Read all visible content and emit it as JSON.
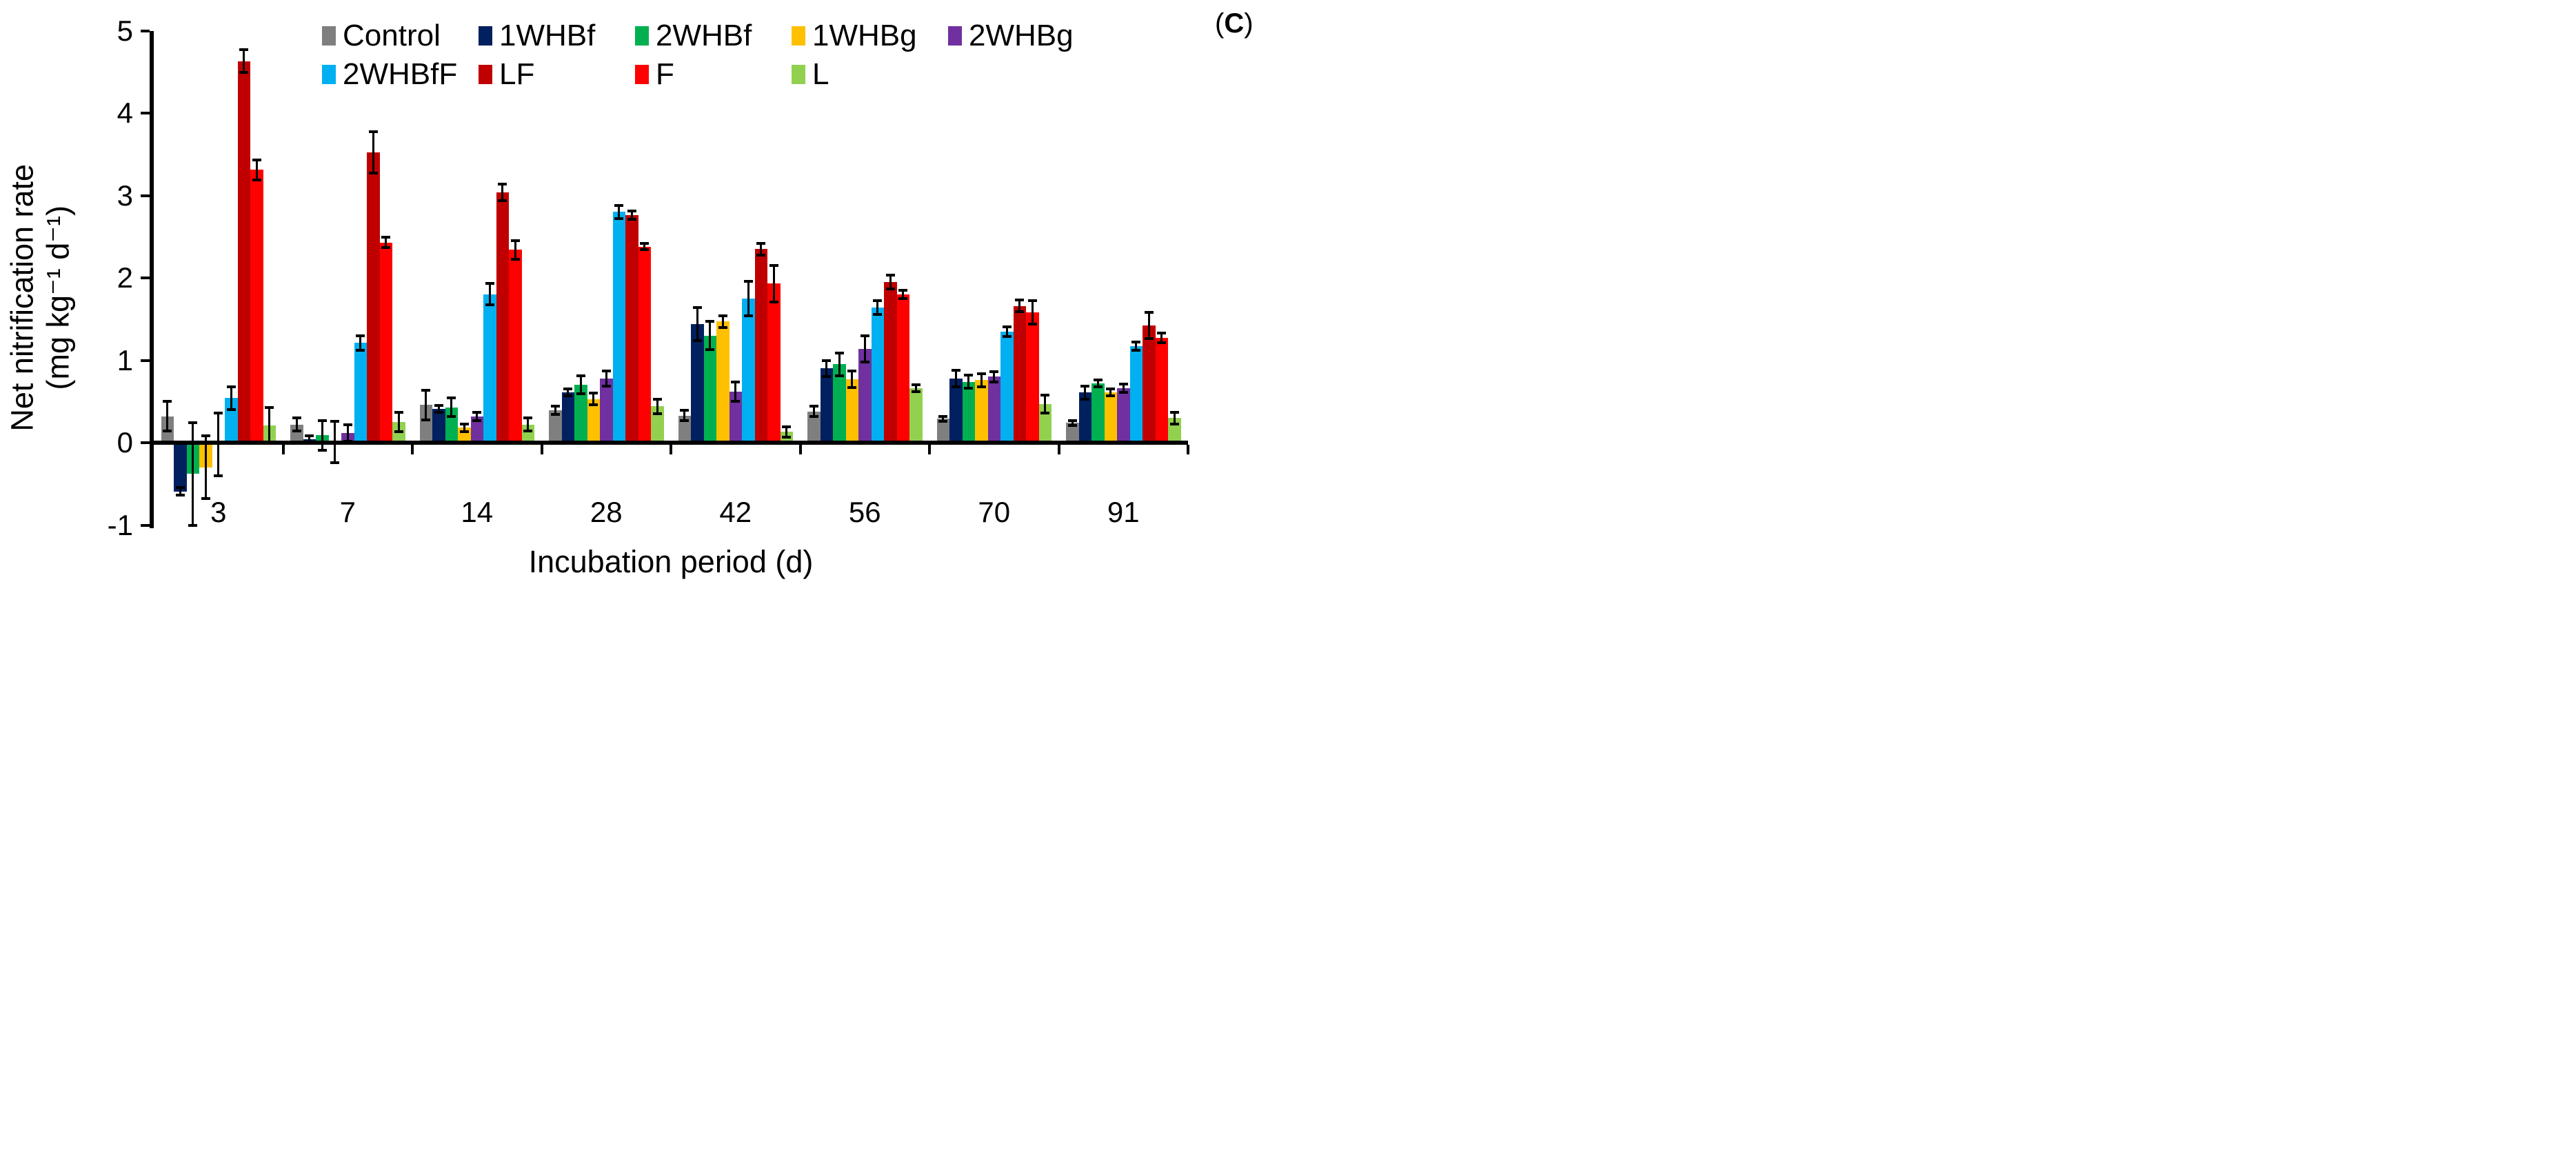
{
  "panel_label": {
    "open": "(",
    "letter": "C",
    "close": ")"
  },
  "y_axis": {
    "title_line1": "Net nitrification rate",
    "title_line2": "(mg kg⁻¹ d⁻¹)",
    "ticks": [
      "5",
      "4",
      "3",
      "2",
      "1",
      "0",
      "-1"
    ],
    "min": -1,
    "max": 5
  },
  "x_axis": {
    "title": "Incubation period (d)"
  },
  "legend": {
    "rows": [
      [
        "Control",
        "1WHBf",
        "2WHBf",
        "1WHBg",
        "2WHBg"
      ],
      [
        "2WHBfF",
        "LF",
        "F",
        "L"
      ]
    ]
  },
  "chart_data": {
    "type": "bar",
    "title": "",
    "xlabel": "Incubation period (d)",
    "ylabel": "Net nitrification rate (mg kg⁻¹ d⁻¹)",
    "ylim": [
      -1,
      5
    ],
    "grid": false,
    "legend_position": "top",
    "error_bars": true,
    "categories": [
      "3",
      "7",
      "14",
      "28",
      "42",
      "56",
      "70",
      "91"
    ],
    "series": [
      {
        "name": "Control",
        "color": "#7F7F7F",
        "values": [
          0.32,
          0.22,
          0.46,
          0.39,
          0.33,
          0.38,
          0.29,
          0.24
        ],
        "errors": [
          0.18,
          0.08,
          0.18,
          0.05,
          0.06,
          0.06,
          0.03,
          0.03
        ]
      },
      {
        "name": "1WHBf",
        "color": "#002060",
        "values": [
          -0.59,
          0.04,
          0.41,
          0.61,
          1.44,
          0.9,
          0.78,
          0.61
        ],
        "errors": [
          0.05,
          0.04,
          0.04,
          0.04,
          0.2,
          0.1,
          0.1,
          0.08
        ]
      },
      {
        "name": "2WHBf",
        "color": "#00B050",
        "values": [
          -0.38,
          0.09,
          0.43,
          0.7,
          1.3,
          0.95,
          0.74,
          0.72
        ],
        "errors": [
          0.62,
          0.18,
          0.11,
          0.11,
          0.17,
          0.14,
          0.08,
          0.04
        ]
      },
      {
        "name": "1WHBg",
        "color": "#FFC000",
        "values": [
          -0.3,
          0.01,
          0.18,
          0.53,
          1.47,
          0.77,
          0.76,
          0.61
        ],
        "errors": [
          0.38,
          0.25,
          0.05,
          0.07,
          0.07,
          0.1,
          0.08,
          0.04
        ]
      },
      {
        "name": "2WHBg",
        "color": "#7030A0",
        "values": [
          -0.02,
          0.12,
          0.32,
          0.78,
          0.62,
          1.14,
          0.8,
          0.66
        ],
        "errors": [
          0.38,
          0.1,
          0.05,
          0.09,
          0.12,
          0.16,
          0.06,
          0.05
        ]
      },
      {
        "name": "2WHBfF",
        "color": "#00B0F0",
        "values": [
          0.54,
          1.21,
          1.8,
          2.8,
          1.75,
          1.64,
          1.35,
          1.17
        ],
        "errors": [
          0.14,
          0.09,
          0.13,
          0.08,
          0.21,
          0.08,
          0.06,
          0.05
        ]
      },
      {
        "name": "LF",
        "color": "#C00000",
        "values": [
          4.63,
          3.52,
          3.04,
          2.76,
          2.35,
          1.95,
          1.66,
          1.42
        ],
        "errors": [
          0.14,
          0.25,
          0.1,
          0.05,
          0.07,
          0.08,
          0.07,
          0.16
        ]
      },
      {
        "name": "F",
        "color": "#FF0000",
        "values": [
          3.31,
          2.43,
          2.34,
          2.38,
          1.93,
          1.8,
          1.58,
          1.27
        ],
        "errors": [
          0.12,
          0.06,
          0.11,
          0.04,
          0.22,
          0.05,
          0.14,
          0.06
        ]
      },
      {
        "name": "L",
        "color": "#92D050",
        "values": [
          0.21,
          0.25,
          0.22,
          0.44,
          0.13,
          0.66,
          0.47,
          0.3
        ],
        "errors": [
          0.22,
          0.12,
          0.08,
          0.09,
          0.06,
          0.04,
          0.11,
          0.07
        ]
      }
    ]
  }
}
